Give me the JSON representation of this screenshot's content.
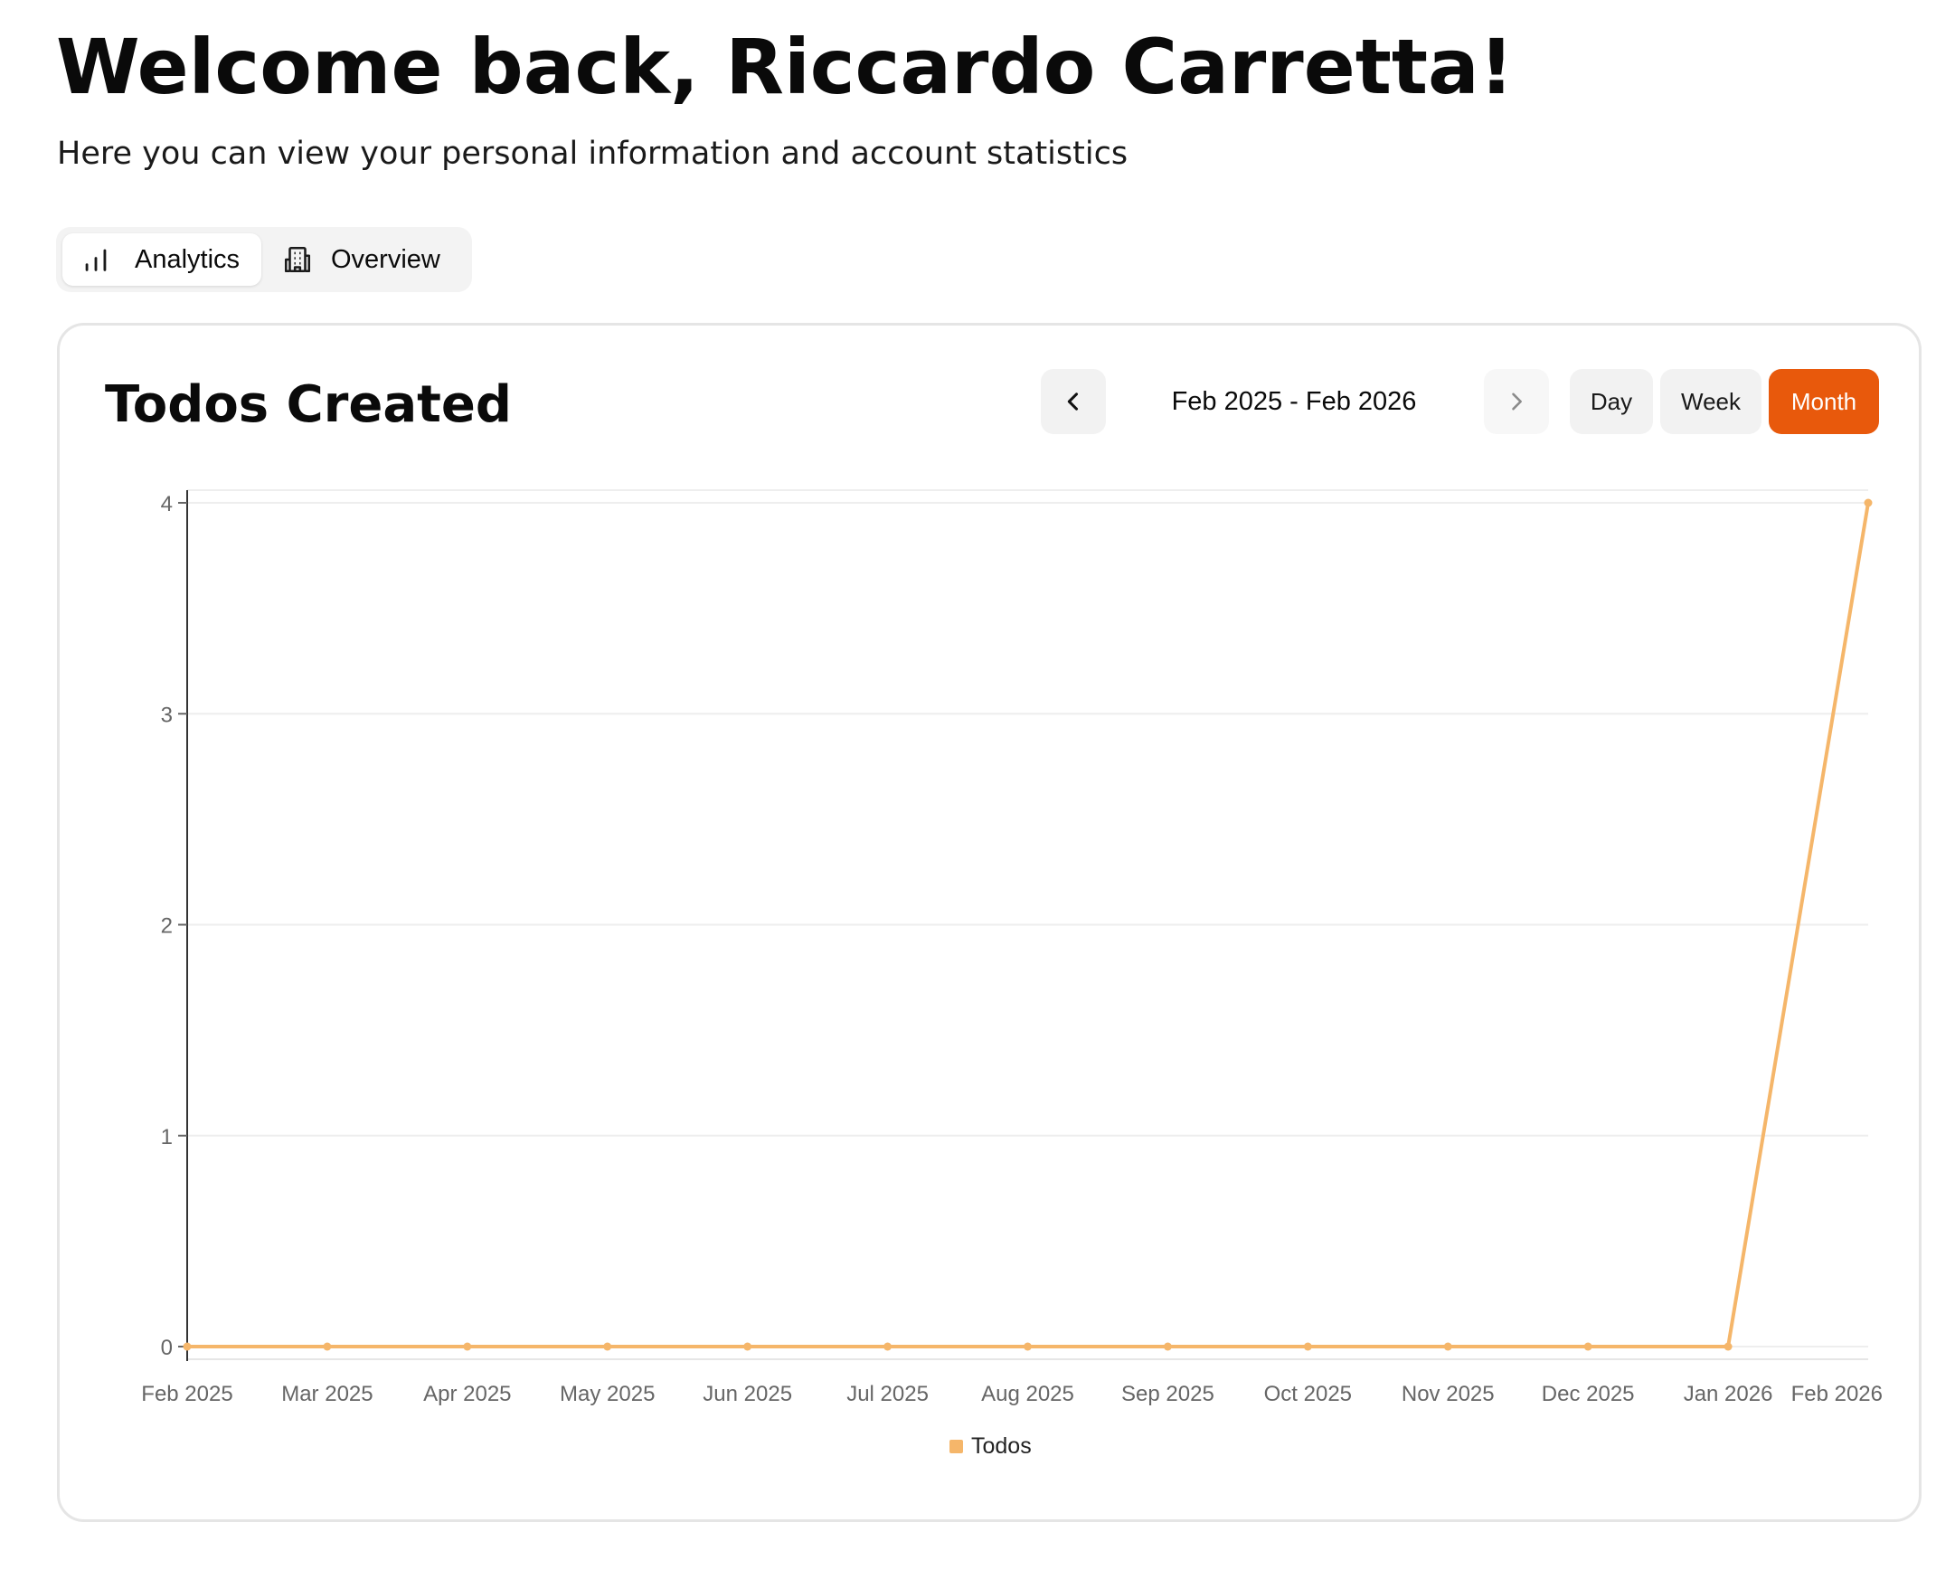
{
  "header": {
    "title": "Welcome back, Riccardo Carretta!",
    "subtitle": "Here you can view your personal information and account statistics"
  },
  "tabs": [
    {
      "label": "Analytics",
      "icon": "bar-chart-icon",
      "active": true
    },
    {
      "label": "Overview",
      "icon": "building-icon",
      "active": false
    }
  ],
  "card": {
    "title": "Todos Created",
    "date_range": "Feb 2025 - Feb 2026",
    "prev_icon": "chevron-left-icon",
    "next_icon": "chevron-right-icon",
    "periods": [
      {
        "label": "Day",
        "active": false
      },
      {
        "label": "Week",
        "active": false
      },
      {
        "label": "Month",
        "active": true
      }
    ]
  },
  "colors": {
    "accent": "#e8590c",
    "series": "#f5b66a"
  },
  "chart_data": {
    "type": "line",
    "categories": [
      "Feb 2025",
      "Mar 2025",
      "Apr 2025",
      "May 2025",
      "Jun 2025",
      "Jul 2025",
      "Aug 2025",
      "Sep 2025",
      "Oct 2025",
      "Nov 2025",
      "Dec 2025",
      "Jan 2026",
      "Feb 2026"
    ],
    "series": [
      {
        "name": "Todos",
        "values": [
          0,
          0,
          0,
          0,
          0,
          0,
          0,
          0,
          0,
          0,
          0,
          0,
          4
        ],
        "color": "#f5b66a"
      }
    ],
    "yticks": [
      0,
      1,
      2,
      3,
      4
    ],
    "ylim": [
      0,
      4
    ],
    "grid": true,
    "legend": "bottom-center"
  }
}
